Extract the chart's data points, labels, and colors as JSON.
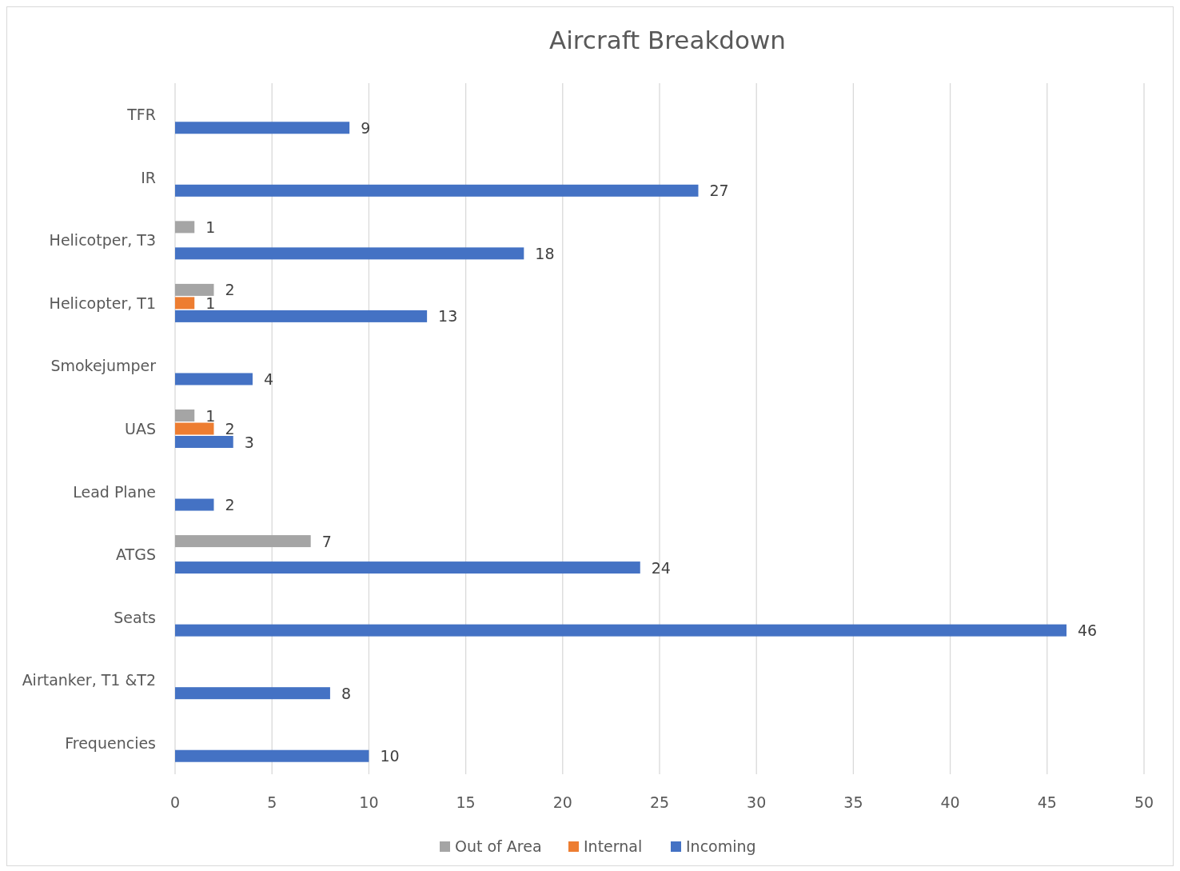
{
  "chart_data": {
    "type": "bar",
    "orientation": "horizontal",
    "title": "Aircraft Breakdown",
    "categories": [
      "TFR",
      "IR",
      "Helicotper, T3",
      "Helicopter, T1",
      "Smokejumper",
      "UAS",
      "Lead Plane",
      "ATGS",
      "Seats",
      "Airtanker, T1 &T2",
      "Frequencies"
    ],
    "series": [
      {
        "name": "Out of Area",
        "color": "#a5a5a5",
        "values": [
          null,
          null,
          1,
          2,
          null,
          1,
          null,
          7,
          null,
          null,
          null
        ]
      },
      {
        "name": "Internal",
        "color": "#ed7d31",
        "values": [
          null,
          null,
          null,
          1,
          null,
          2,
          null,
          null,
          null,
          null,
          null
        ]
      },
      {
        "name": "Incoming",
        "color": "#4472c4",
        "values": [
          9,
          27,
          18,
          13,
          4,
          3,
          2,
          24,
          46,
          8,
          10
        ]
      }
    ],
    "xlim": [
      0,
      50
    ],
    "xticks": [
      0,
      5,
      10,
      15,
      20,
      25,
      30,
      35,
      40,
      45,
      50
    ],
    "grid": "x",
    "legend": "bottom",
    "data_labels": true
  }
}
